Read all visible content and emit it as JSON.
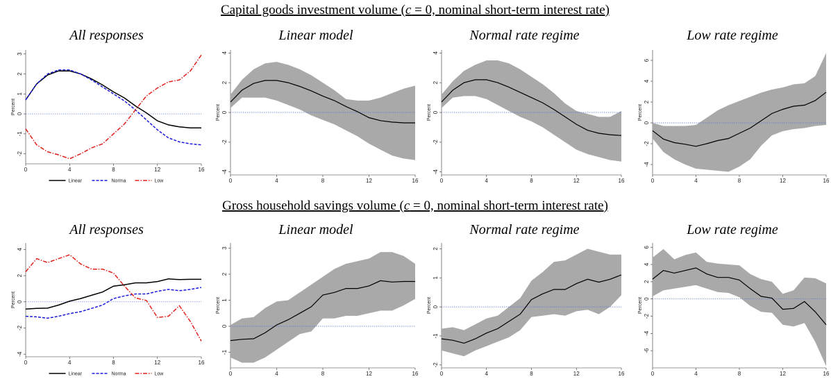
{
  "section_titles": [
    {
      "pre": "Capital goods investment volume (",
      "var": "c",
      "post": " = 0, nominal short-term interest rate)"
    },
    {
      "pre": "Gross household savings volume (",
      "var": "c",
      "post": " = 0, nominal short-term interest rate)"
    }
  ],
  "chart_data": [
    {
      "type": "line",
      "title": "All responses",
      "ylabel": "Percent",
      "x": [
        0,
        1,
        2,
        3,
        4,
        5,
        6,
        7,
        8,
        9,
        10,
        11,
        12,
        13,
        14,
        15,
        16
      ],
      "xlim": [
        0,
        16
      ],
      "xticks": [
        0,
        4,
        8,
        12,
        16
      ],
      "ylim": [
        -2.5,
        3.2
      ],
      "yticks": [
        -2,
        -1,
        0,
        1,
        2,
        3
      ],
      "hline": {
        "value": 0,
        "color": "#5b6fd6"
      },
      "legend": "bottom",
      "series": [
        {
          "name": "Linear",
          "color": "#000000",
          "dash": "solid",
          "values": [
            0.7,
            1.5,
            1.95,
            2.15,
            2.15,
            2.0,
            1.75,
            1.45,
            1.1,
            0.8,
            0.4,
            0.05,
            -0.35,
            -0.55,
            -0.65,
            -0.7,
            -0.7
          ]
        },
        {
          "name": "Norma",
          "color": "#1a1adb",
          "dash": "dash",
          "values": [
            0.7,
            1.5,
            2.0,
            2.2,
            2.2,
            2.0,
            1.7,
            1.35,
            1.0,
            0.65,
            0.2,
            -0.3,
            -0.8,
            -1.2,
            -1.4,
            -1.5,
            -1.55
          ]
        },
        {
          "name": "Low",
          "color": "#e0201b",
          "dash": "dashdot",
          "values": [
            -0.75,
            -1.55,
            -1.9,
            -2.05,
            -2.25,
            -2.0,
            -1.7,
            -1.5,
            -1.0,
            -0.5,
            0.2,
            0.9,
            1.3,
            1.6,
            1.7,
            2.15,
            2.95
          ]
        }
      ]
    },
    {
      "type": "band",
      "title": "Linear model",
      "ylabel": "Percent",
      "x": [
        0,
        1,
        2,
        3,
        4,
        5,
        6,
        7,
        8,
        9,
        10,
        11,
        12,
        13,
        14,
        15,
        16
      ],
      "xlim": [
        0,
        16
      ],
      "xticks": [
        0,
        4,
        8,
        12,
        16
      ],
      "ylim": [
        -4.2,
        4.2
      ],
      "yticks": [
        -4,
        -2,
        0,
        2,
        4
      ],
      "hline": {
        "value": 0,
        "color": "#5b6fd6"
      },
      "line": {
        "color": "#000000",
        "values": [
          0.7,
          1.5,
          1.95,
          2.15,
          2.15,
          2.0,
          1.75,
          1.45,
          1.1,
          0.8,
          0.4,
          0.05,
          -0.35,
          -0.55,
          -0.65,
          -0.7,
          -0.7
        ]
      },
      "band": {
        "color": "#a9a9a9",
        "lower": [
          0.3,
          1.0,
          1.0,
          1.0,
          0.8,
          0.5,
          0.2,
          -0.2,
          -0.5,
          -0.8,
          -1.2,
          -1.6,
          -2.1,
          -2.5,
          -2.9,
          -3.1,
          -3.2
        ],
        "upper": [
          1.2,
          2.2,
          2.9,
          3.3,
          3.4,
          3.2,
          2.9,
          2.5,
          2.0,
          1.5,
          0.9,
          0.8,
          0.8,
          1.0,
          1.3,
          1.6,
          1.8
        ]
      }
    },
    {
      "type": "band",
      "title": "Normal rate regime",
      "ylabel": "Percent",
      "x": [
        0,
        1,
        2,
        3,
        4,
        5,
        6,
        7,
        8,
        9,
        10,
        11,
        12,
        13,
        14,
        15,
        16
      ],
      "xlim": [
        0,
        16
      ],
      "xticks": [
        0,
        4,
        8,
        12,
        16
      ],
      "ylim": [
        -4.2,
        4.2
      ],
      "yticks": [
        -4,
        -2,
        0,
        2,
        4
      ],
      "hline": {
        "value": 0,
        "color": "#5b6fd6"
      },
      "line": {
        "color": "#000000",
        "values": [
          0.7,
          1.5,
          2.0,
          2.2,
          2.2,
          2.0,
          1.7,
          1.35,
          1.0,
          0.65,
          0.2,
          -0.3,
          -0.8,
          -1.2,
          -1.4,
          -1.5,
          -1.55
        ]
      },
      "band": {
        "color": "#a9a9a9",
        "lower": [
          0.3,
          1.0,
          1.1,
          1.1,
          0.9,
          0.5,
          0.1,
          -0.3,
          -0.6,
          -1.0,
          -1.5,
          -2.0,
          -2.5,
          -2.8,
          -3.0,
          -3.2,
          -3.3
        ],
        "upper": [
          1.2,
          2.1,
          2.8,
          3.2,
          3.5,
          3.5,
          3.3,
          2.9,
          2.4,
          1.9,
          1.3,
          0.6,
          0.1,
          -0.1,
          -0.3,
          -0.3,
          0.1
        ]
      }
    },
    {
      "type": "band",
      "title": "Low rate regime",
      "ylabel": "Percent",
      "x": [
        0,
        1,
        2,
        3,
        4,
        5,
        6,
        7,
        8,
        9,
        10,
        11,
        12,
        13,
        14,
        15,
        16
      ],
      "xlim": [
        0,
        16
      ],
      "xticks": [
        0,
        4,
        8,
        12,
        16
      ],
      "ylim": [
        -5,
        7
      ],
      "yticks": [
        -4,
        -2,
        0,
        2,
        4,
        6
      ],
      "hline": {
        "value": 0,
        "color": "#5b6fd6"
      },
      "line": {
        "color": "#000000",
        "values": [
          -0.75,
          -1.55,
          -1.9,
          -2.05,
          -2.25,
          -2.0,
          -1.7,
          -1.5,
          -1.0,
          -0.5,
          0.2,
          0.9,
          1.3,
          1.6,
          1.7,
          2.15,
          2.95
        ]
      },
      "band": {
        "color": "#a9a9a9",
        "lower": [
          -1.5,
          -2.8,
          -3.5,
          -4.0,
          -4.4,
          -4.5,
          -4.6,
          -4.7,
          -4.2,
          -3.5,
          -2.2,
          -1.2,
          -0.8,
          -0.6,
          -0.5,
          -0.3,
          -0.2
        ],
        "upper": [
          0,
          -0.3,
          -0.3,
          -0.3,
          -0.2,
          0.5,
          1.2,
          1.7,
          2.1,
          2.5,
          2.9,
          3.2,
          3.4,
          3.7,
          3.8,
          4.5,
          6.7
        ]
      }
    },
    {
      "type": "line",
      "title": "All responses",
      "ylabel": "Percent",
      "x": [
        0,
        1,
        2,
        3,
        4,
        5,
        6,
        7,
        8,
        9,
        10,
        11,
        12,
        13,
        14,
        15,
        16
      ],
      "xlim": [
        0,
        16
      ],
      "xticks": [
        0,
        4,
        8,
        12,
        16
      ],
      "ylim": [
        -4.2,
        4.5
      ],
      "yticks": [
        -4,
        -2,
        0,
        2,
        4
      ],
      "hline": {
        "value": 0,
        "color": "#5b6fd6"
      },
      "legend": "bottom",
      "series": [
        {
          "name": "Linear",
          "color": "#000000",
          "dash": "solid",
          "values": [
            -0.55,
            -0.5,
            -0.48,
            -0.25,
            0.05,
            0.25,
            0.5,
            0.75,
            1.2,
            1.3,
            1.45,
            1.45,
            1.55,
            1.75,
            1.7,
            1.72,
            1.72
          ]
        },
        {
          "name": "Norma",
          "color": "#1a1adb",
          "dash": "dash",
          "values": [
            -1.1,
            -1.15,
            -1.25,
            -1.1,
            -0.9,
            -0.75,
            -0.5,
            -0.25,
            0.25,
            0.45,
            0.6,
            0.6,
            0.8,
            0.95,
            0.85,
            0.95,
            1.1
          ]
        },
        {
          "name": "Low",
          "color": "#e0201b",
          "dash": "dashdot",
          "values": [
            2.3,
            3.3,
            3.0,
            3.3,
            3.6,
            2.9,
            2.5,
            2.5,
            2.2,
            1.2,
            0.3,
            0.1,
            -1.2,
            -1.1,
            -0.3,
            -1.5,
            -3.0
          ]
        }
      ]
    },
    {
      "type": "band",
      "title": "Linear model",
      "ylabel": "Percent",
      "x": [
        0,
        1,
        2,
        3,
        4,
        5,
        6,
        7,
        8,
        9,
        10,
        11,
        12,
        13,
        14,
        15,
        16
      ],
      "xlim": [
        0,
        16
      ],
      "xticks": [
        0,
        4,
        8,
        12,
        16
      ],
      "ylim": [
        -1.6,
        3.2
      ],
      "yticks": [
        -1,
        0,
        1,
        2,
        3
      ],
      "hline": {
        "value": 0,
        "color": "#5b6fd6"
      },
      "line": {
        "color": "#000000",
        "values": [
          -0.55,
          -0.5,
          -0.48,
          -0.25,
          0.05,
          0.25,
          0.5,
          0.75,
          1.2,
          1.3,
          1.45,
          1.45,
          1.55,
          1.75,
          1.7,
          1.72,
          1.72
        ]
      },
      "band": {
        "color": "#a9a9a9",
        "lower": [
          -1.2,
          -1.4,
          -1.4,
          -1.2,
          -0.9,
          -0.6,
          -0.3,
          -0.2,
          0.3,
          0.3,
          0.4,
          0.4,
          0.5,
          0.6,
          0.6,
          0.8,
          1.05
        ],
        "upper": [
          0.05,
          0.3,
          0.35,
          0.7,
          0.95,
          1.0,
          1.3,
          1.6,
          1.9,
          2.2,
          2.4,
          2.5,
          2.6,
          2.85,
          2.85,
          2.7,
          2.4
        ]
      }
    },
    {
      "type": "band",
      "title": "Normal rate regime",
      "ylabel": "Percent",
      "x": [
        0,
        1,
        2,
        3,
        4,
        5,
        6,
        7,
        8,
        9,
        10,
        11,
        12,
        13,
        14,
        15,
        16
      ],
      "xlim": [
        0,
        16
      ],
      "xticks": [
        0,
        4,
        8,
        12,
        16
      ],
      "ylim": [
        -2.1,
        2.2
      ],
      "yticks": [
        -2,
        -1,
        0,
        1,
        2
      ],
      "hline": {
        "value": 0,
        "color": "#5b6fd6"
      },
      "line": {
        "color": "#000000",
        "values": [
          -1.1,
          -1.15,
          -1.25,
          -1.1,
          -0.9,
          -0.75,
          -0.5,
          -0.25,
          0.25,
          0.45,
          0.6,
          0.6,
          0.8,
          0.95,
          0.85,
          0.95,
          1.1
        ]
      },
      "band": {
        "color": "#a9a9a9",
        "lower": [
          -1.5,
          -1.6,
          -1.7,
          -1.5,
          -1.35,
          -1.2,
          -1.05,
          -0.8,
          -0.35,
          -0.3,
          -0.25,
          -0.3,
          -0.15,
          -0.1,
          -0.25,
          0.0,
          0.4
        ],
        "upper": [
          -0.75,
          -0.7,
          -0.8,
          -0.6,
          -0.4,
          -0.3,
          0.0,
          0.3,
          0.9,
          1.2,
          1.55,
          1.6,
          1.8,
          2.0,
          1.9,
          1.8,
          1.8
        ]
      }
    },
    {
      "type": "band",
      "title": "Low rate regime",
      "ylabel": "Percent",
      "x": [
        0,
        1,
        2,
        3,
        4,
        5,
        6,
        7,
        8,
        9,
        10,
        11,
        12,
        13,
        14,
        15,
        16
      ],
      "xlim": [
        0,
        16
      ],
      "xticks": [
        0,
        4,
        8,
        12,
        16
      ],
      "ylim": [
        -8,
        6.5
      ],
      "yticks": [
        -6,
        -4,
        -2,
        0,
        2,
        4,
        6
      ],
      "hline": {
        "value": 0,
        "color": "#5b6fd6"
      },
      "line": {
        "color": "#000000",
        "values": [
          2.3,
          3.3,
          3.0,
          3.3,
          3.6,
          2.9,
          2.5,
          2.5,
          2.2,
          1.2,
          0.3,
          0.1,
          -1.2,
          -1.1,
          -0.3,
          -1.5,
          -3.0
        ]
      },
      "band": {
        "color": "#a9a9a9",
        "lower": [
          0.3,
          1.0,
          1.2,
          1.4,
          1.6,
          1.2,
          0.8,
          0.7,
          0.2,
          -0.8,
          -1.5,
          -1.6,
          -3.0,
          -3.2,
          -2.8,
          -5.0,
          -7.8
        ],
        "upper": [
          4.8,
          5.8,
          4.6,
          5.1,
          5.4,
          4.3,
          4.1,
          4.0,
          3.9,
          2.9,
          2.3,
          2.0,
          0.6,
          1.0,
          2.5,
          2.4,
          1.8
        ]
      }
    }
  ]
}
